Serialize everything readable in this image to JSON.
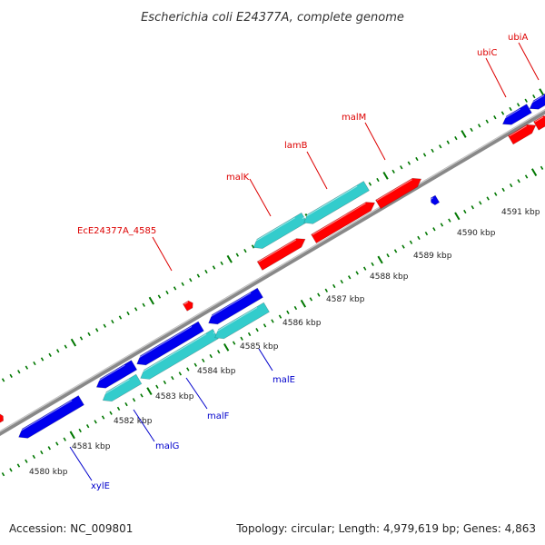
{
  "title": "Escherichia coli E24377A, complete genome",
  "footer": {
    "accession": "Accession: NC_009801",
    "summary": "Topology: circular; Length: 4,979,619 bp; Genes: 4,863"
  },
  "colors": {
    "forward_gene": "#ff0000",
    "reverse_gene": "#0000ee",
    "operon": "#33cccc",
    "backbone": "#888888",
    "ticks": "#007700",
    "top_label": "#dd0000",
    "bottom_label": "#0000cc"
  },
  "scale": {
    "unit": "kbp",
    "labels": [
      "4580 kbp",
      "4581 kbp",
      "4582 kbp",
      "4583 kbp",
      "4584 kbp",
      "4585 kbp",
      "4586 kbp",
      "4587 kbp",
      "4588 kbp",
      "4589 kbp",
      "4590 kbp",
      "4591 kbp"
    ]
  },
  "genes_top": [
    {
      "label": "EcE24377A_4585"
    },
    {
      "label": "malK"
    },
    {
      "label": "lamB"
    },
    {
      "label": "malM"
    },
    {
      "label": "ubiC"
    },
    {
      "label": "ubiA"
    }
  ],
  "genes_bottom": [
    {
      "label": "xylE"
    },
    {
      "label": "malG"
    },
    {
      "label": "malF"
    },
    {
      "label": "malE"
    }
  ]
}
